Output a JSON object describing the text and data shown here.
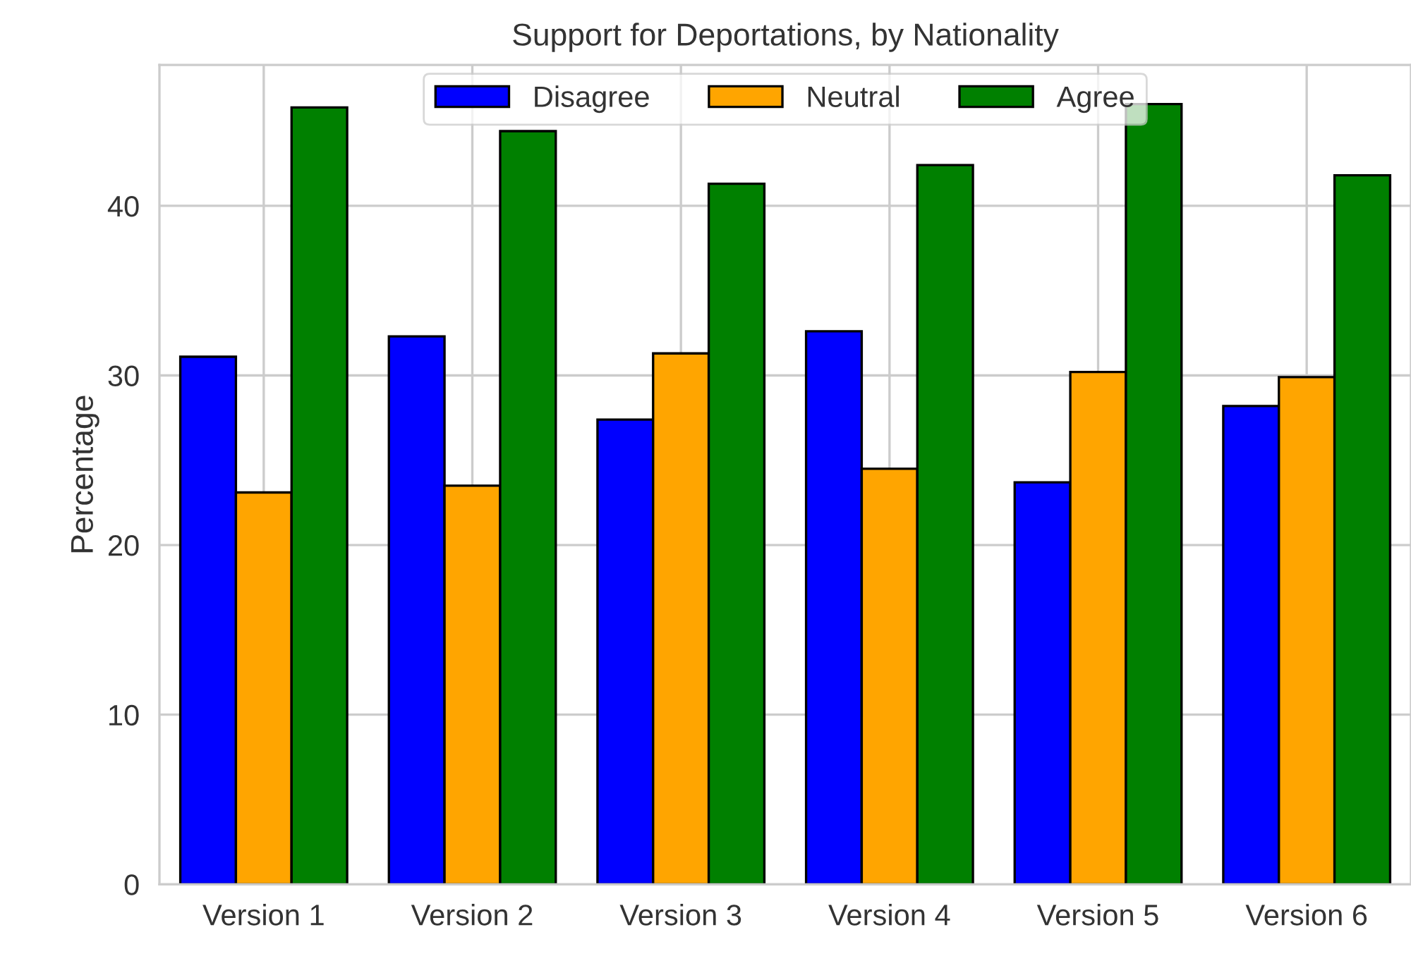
{
  "chart_data": {
    "type": "bar",
    "title": "Support for Deportations, by Nationality",
    "ylabel": "Percentage",
    "categories": [
      "Version 1",
      "Version 2",
      "Version 3",
      "Version 4",
      "Version 5",
      "Version 6"
    ],
    "series": [
      {
        "name": "Disagree",
        "color": "#0000ff",
        "values": [
          31.1,
          32.3,
          27.4,
          32.6,
          23.7,
          28.2
        ]
      },
      {
        "name": "Neutral",
        "color": "#ffa500",
        "values": [
          23.1,
          23.5,
          31.3,
          24.5,
          30.2,
          29.9
        ]
      },
      {
        "name": "Agree",
        "color": "#008000",
        "values": [
          45.8,
          44.4,
          41.3,
          42.4,
          46.0,
          41.8
        ]
      }
    ],
    "ylim": [
      0,
      48.3
    ],
    "yticks": [
      0,
      10,
      20,
      30,
      40
    ],
    "grid": true,
    "legend": "top"
  }
}
